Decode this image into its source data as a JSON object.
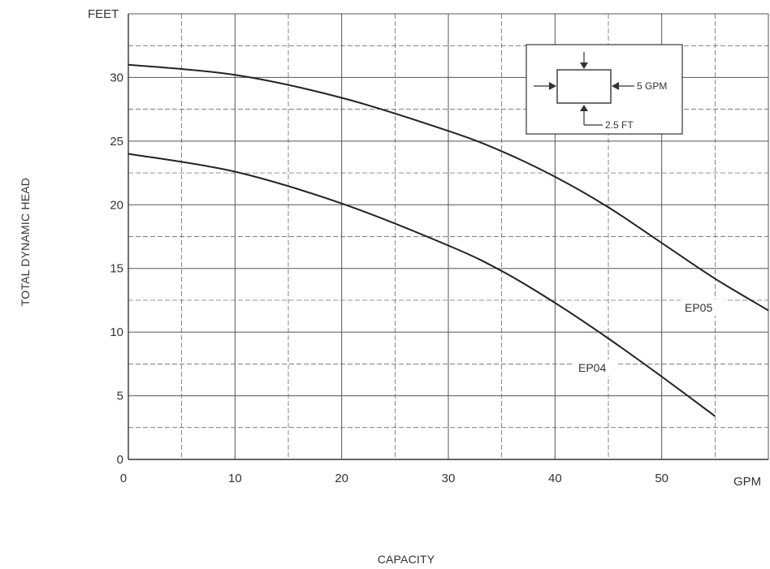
{
  "chart_data": {
    "type": "line",
    "x_unit": "GPM",
    "y_unit": "FEET",
    "xlabel": "CAPACITY",
    "ylabel": "TOTAL DYNAMIC HEAD",
    "xlim": [
      0,
      60
    ],
    "ylim": [
      0,
      35
    ],
    "x_ticks": [
      0,
      10,
      20,
      30,
      40,
      50
    ],
    "y_ticks": [
      0,
      5,
      10,
      15,
      20,
      25,
      30
    ],
    "grid": true,
    "series": [
      {
        "name": "EP05",
        "x": [
          0,
          10,
          20,
          30,
          35,
          40,
          45,
          50,
          55,
          60
        ],
        "y": [
          31,
          30.2,
          28.4,
          25.8,
          24.2,
          22.2,
          19.8,
          17,
          14.2,
          11.7
        ]
      },
      {
        "name": "EP04",
        "x": [
          0,
          10,
          20,
          30,
          35,
          40,
          45,
          50,
          55
        ],
        "y": [
          24,
          22.6,
          20.1,
          16.8,
          14.8,
          12.3,
          9.5,
          6.5,
          3.4
        ]
      }
    ],
    "inset": {
      "flow_label": "5 GPM",
      "height_label": "2.5 FT"
    }
  }
}
